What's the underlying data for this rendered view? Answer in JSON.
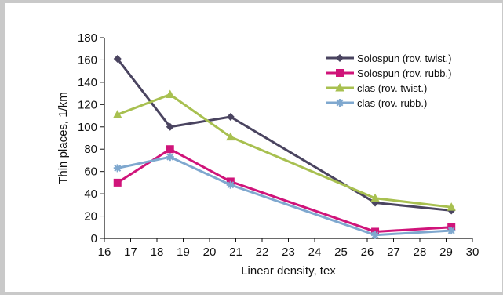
{
  "chart_data": {
    "type": "line",
    "xlabel": "Linear density, tex",
    "ylabel": "Thin places, 1/km",
    "xlim": [
      16,
      30
    ],
    "ylim": [
      0,
      180
    ],
    "xticks": [
      16,
      17,
      18,
      19,
      20,
      21,
      22,
      23,
      24,
      25,
      26,
      27,
      28,
      29,
      30
    ],
    "yticks": [
      0,
      20,
      40,
      60,
      80,
      100,
      120,
      140,
      160,
      180
    ],
    "grid": false,
    "legend_position": "top-right",
    "x": [
      16.5,
      18.5,
      20.8,
      26.3,
      29.2
    ],
    "series": [
      {
        "name": "Solospun (rov. twist.)",
        "values": [
          161,
          100,
          109,
          32,
          25
        ],
        "color": "#4a4460",
        "marker": "diamond"
      },
      {
        "name": "Solospun (rov. rubb.)",
        "values": [
          50,
          80,
          51,
          6,
          10
        ],
        "color": "#d0147a",
        "marker": "square"
      },
      {
        "name": "clas (rov. twist.)",
        "values": [
          111,
          129,
          91,
          36,
          28
        ],
        "color": "#a8c050",
        "marker": "triangle"
      },
      {
        "name": "clas (rov. rubb.)",
        "values": [
          63,
          73,
          48,
          3,
          7
        ],
        "color": "#7fa8cf",
        "marker": "star"
      }
    ]
  }
}
